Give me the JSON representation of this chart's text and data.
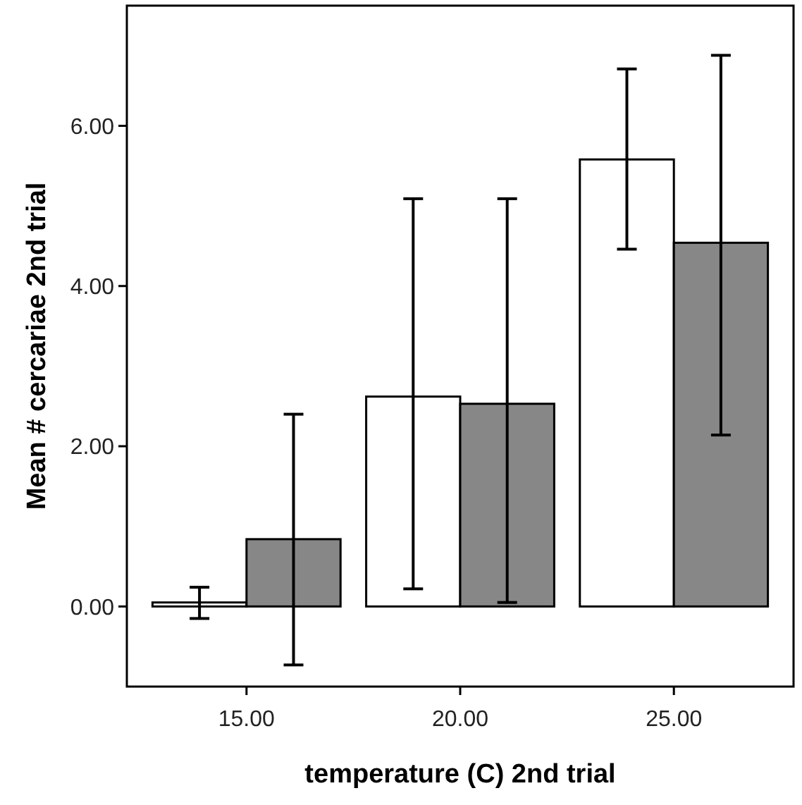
{
  "chart_data": {
    "type": "bar",
    "xlabel": "temperature (C) 2nd trial",
    "ylabel": "Mean # cercariae 2nd trial",
    "categories": [
      "15.00",
      "20.00",
      "25.00"
    ],
    "series": [
      {
        "color": "#ffffff",
        "values": [
          0.05,
          2.62,
          5.58
        ],
        "errors": [
          [
            -0.15,
            0.24
          ],
          [
            0.22,
            5.09
          ],
          [
            4.46,
            6.71
          ]
        ]
      },
      {
        "color": "#878787",
        "values": [
          0.84,
          2.53,
          4.54
        ],
        "errors": [
          [
            -0.73,
            2.4
          ],
          [
            0.05,
            5.09
          ],
          [
            2.14,
            6.88
          ]
        ]
      }
    ],
    "ylim": [
      -1,
      7.5
    ],
    "yticks": [
      {
        "value": 0,
        "label": "0.00"
      },
      {
        "value": 2,
        "label": "2.00"
      },
      {
        "value": 4,
        "label": "4.00"
      },
      {
        "value": 6,
        "label": "6.00"
      }
    ],
    "grid": false
  }
}
